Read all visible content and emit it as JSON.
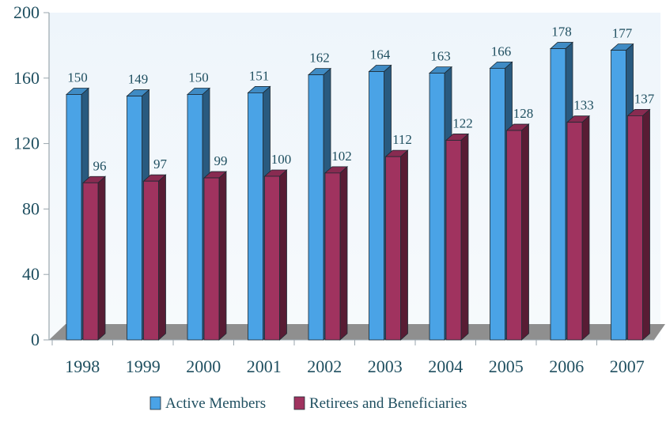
{
  "chart_data": {
    "type": "bar",
    "categories": [
      "1998",
      "1999",
      "2000",
      "2001",
      "2002",
      "2003",
      "2004",
      "2005",
      "2006",
      "2007"
    ],
    "series": [
      {
        "name": "Active Members",
        "values": [
          150,
          149,
          150,
          151,
          162,
          164,
          163,
          166,
          178,
          177
        ],
        "color": "#4aa3e6"
      },
      {
        "name": "Retirees and Beneficiaries",
        "values": [
          96,
          97,
          99,
          100,
          102,
          112,
          122,
          128,
          133,
          137
        ],
        "color": "#a0335f"
      }
    ],
    "title": "",
    "xlabel": "",
    "ylabel": "",
    "ylim": [
      0,
      200
    ],
    "yticks": [
      0,
      40,
      80,
      120,
      160,
      200
    ],
    "grid": false,
    "legend": "bottom",
    "style": "3d-bars"
  },
  "colors": {
    "axis_text": "#1f4f60",
    "floor": "#8f8f8f",
    "wall_top": "#eef5fb",
    "wall_bottom": "#f7fafc"
  }
}
